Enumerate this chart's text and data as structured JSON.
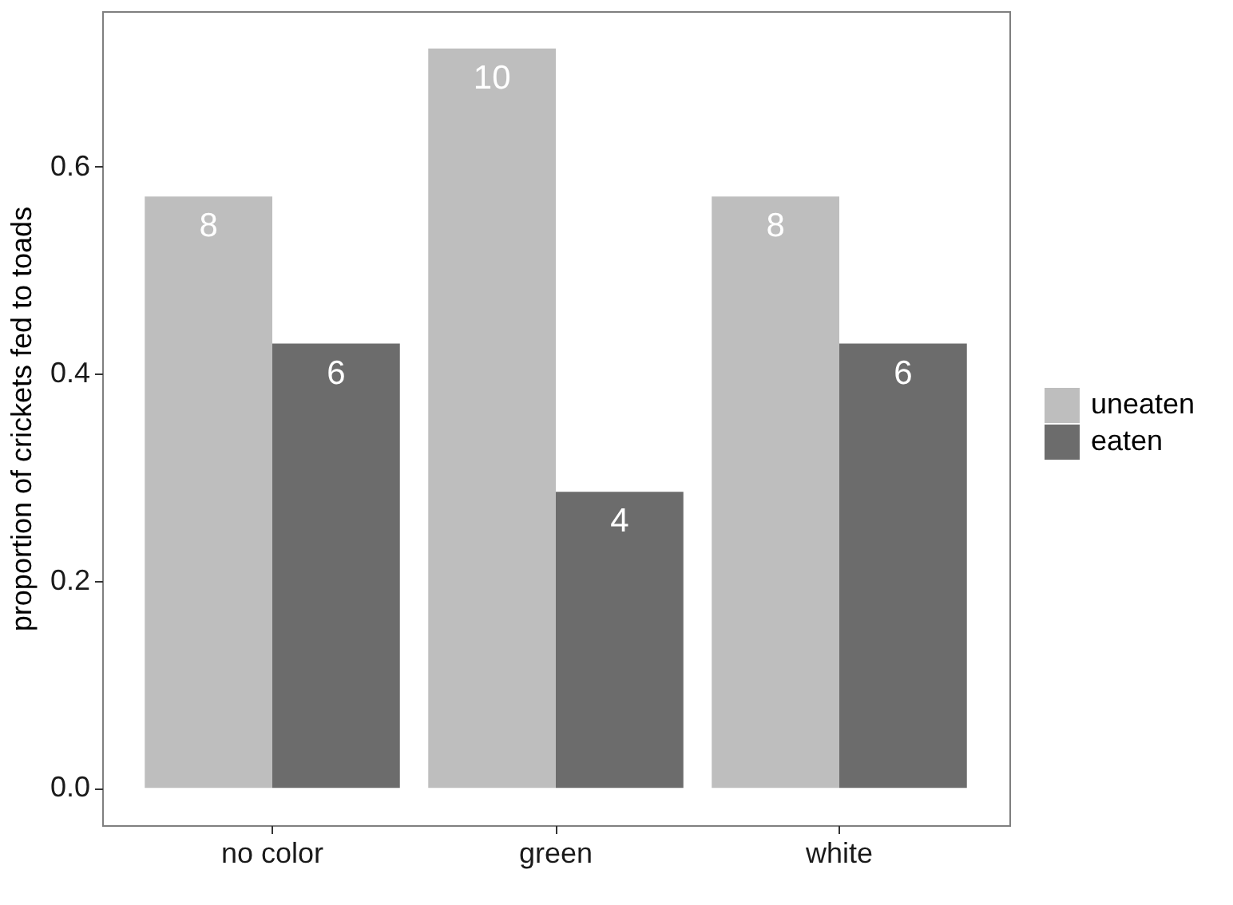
{
  "chart_data": {
    "type": "bar",
    "categories": [
      "no color",
      "green",
      "white"
    ],
    "series": [
      {
        "name": "uneaten",
        "color": "#bebebe",
        "values": [
          0.571,
          0.714,
          0.571
        ]
      },
      {
        "name": "eaten",
        "color": "#6c6c6c",
        "values": [
          0.429,
          0.286,
          0.429
        ]
      }
    ],
    "annotations": [
      {
        "text": "8",
        "x": "no color",
        "y": 0.571
      },
      {
        "text": "10",
        "x": "green",
        "y": 0.714
      },
      {
        "text": "8",
        "x": "white",
        "y": 0.571
      },
      {
        "text": "6",
        "x": "no color",
        "y": 0.429
      },
      {
        "text": "4",
        "x": "green",
        "y": 0.286
      },
      {
        "text": "6",
        "x": "white",
        "y": 0.429
      }
    ],
    "ylabel": "proportion of crickets fed to toads",
    "ylim": [
      -0.036,
      0.75
    ],
    "yticks": [
      {
        "value": 0,
        "label": "0.0"
      },
      0.2,
      0.4,
      0.6
    ],
    "grid": false,
    "legend": "right"
  }
}
